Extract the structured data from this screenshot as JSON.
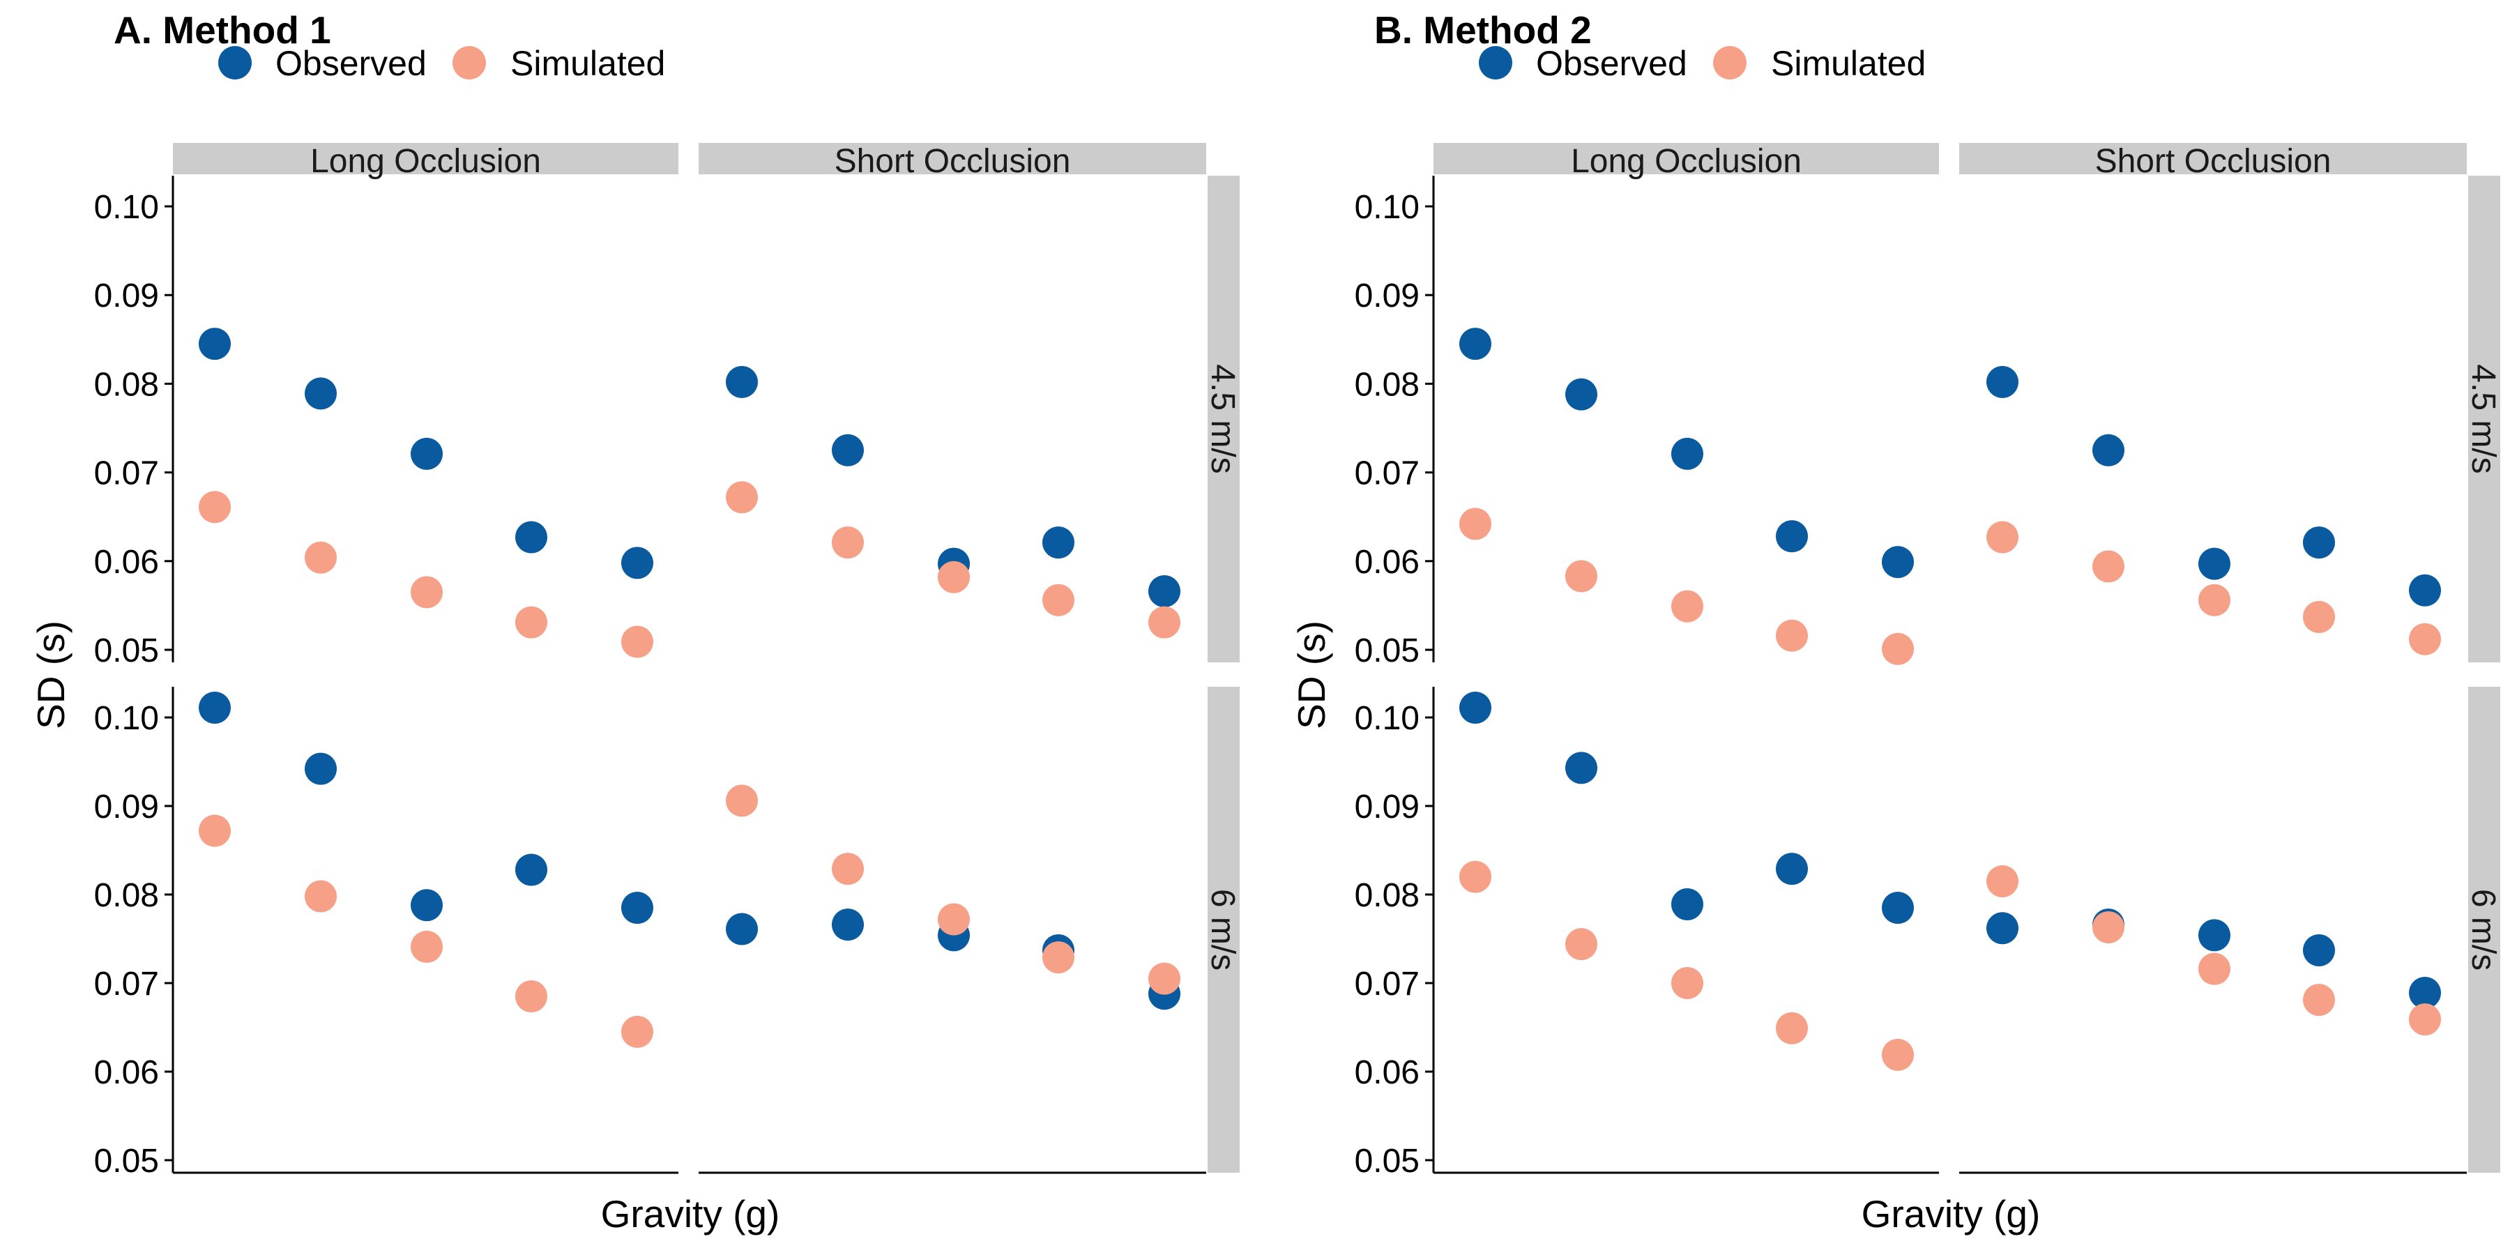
{
  "colors": {
    "observed": "#0a5aa0",
    "simulated": "#f7a088",
    "strip": "#cccccc"
  },
  "legend": {
    "observed": "Observed",
    "simulated": "Simulated"
  },
  "chart_data": [
    {
      "type": "scatter",
      "title": "A. Method 1",
      "xlabel": "Gravity (g)",
      "ylabel": "SD (s)",
      "ylim": [
        0.05,
        0.1
      ],
      "yticks": [
        "0.05",
        "0.06",
        "0.07",
        "0.08",
        "0.09",
        "0.10"
      ],
      "columns": [
        "Long Occlusion",
        "Short Occlusion"
      ],
      "rows": [
        "4.5 m/s",
        "6 m/s"
      ],
      "legend_placement": "top",
      "grid": false,
      "panels": [
        {
          "col": 0,
          "row": 0,
          "series": [
            {
              "name": "Observed",
              "values": [
                0.0845,
                0.0789,
                0.0721,
                0.0627,
                0.0598
              ]
            },
            {
              "name": "Simulated",
              "values": [
                0.0661,
                0.0604,
                0.0565,
                0.0531,
                0.0509
              ]
            }
          ]
        },
        {
          "col": 1,
          "row": 0,
          "series": [
            {
              "name": "Observed",
              "values": [
                0.0802,
                0.0725,
                0.0597,
                0.0621,
                0.0566
              ]
            },
            {
              "name": "Simulated",
              "values": [
                0.0672,
                0.0621,
                0.0582,
                0.0556,
                0.0531
              ]
            }
          ]
        },
        {
          "col": 0,
          "row": 1,
          "series": [
            {
              "name": "Observed",
              "values": [
                0.1011,
                0.0942,
                0.0788,
                0.0828,
                0.0785
              ]
            },
            {
              "name": "Simulated",
              "values": [
                0.0872,
                0.0798,
                0.0741,
                0.0685,
                0.0645
              ]
            }
          ]
        },
        {
          "col": 1,
          "row": 1,
          "series": [
            {
              "name": "Observed",
              "values": [
                0.0761,
                0.0766,
                0.0754,
                0.0737,
                0.0688
              ]
            },
            {
              "name": "Simulated",
              "values": [
                0.0906,
                0.0829,
                0.0772,
                0.0729,
                0.0705
              ]
            }
          ]
        }
      ]
    },
    {
      "type": "scatter",
      "title": "B. Method 2",
      "xlabel": "Gravity (g)",
      "ylabel": "SD (s)",
      "ylim": [
        0.05,
        0.1
      ],
      "yticks": [
        "0.05",
        "0.06",
        "0.07",
        "0.08",
        "0.09",
        "0.10"
      ],
      "columns": [
        "Long Occlusion",
        "Short Occlusion"
      ],
      "rows": [
        "4.5 m/s",
        "6 m/s"
      ],
      "legend_placement": "top",
      "grid": false,
      "panels": [
        {
          "col": 0,
          "row": 0,
          "series": [
            {
              "name": "Observed",
              "values": [
                0.0845,
                0.0788,
                0.0721,
                0.0628,
                0.0599
              ]
            },
            {
              "name": "Simulated",
              "values": [
                0.0642,
                0.0583,
                0.0549,
                0.0516,
                0.0501
              ]
            }
          ]
        },
        {
          "col": 1,
          "row": 0,
          "series": [
            {
              "name": "Observed",
              "values": [
                0.0802,
                0.0725,
                0.0597,
                0.0621,
                0.0567
              ]
            },
            {
              "name": "Simulated",
              "values": [
                0.0627,
                0.0594,
                0.0556,
                0.0537,
                0.0512
              ]
            }
          ]
        },
        {
          "col": 0,
          "row": 1,
          "series": [
            {
              "name": "Observed",
              "values": [
                0.1011,
                0.0943,
                0.0789,
                0.0829,
                0.0785
              ]
            },
            {
              "name": "Simulated",
              "values": [
                0.082,
                0.0744,
                0.07,
                0.0649,
                0.0619
              ]
            }
          ]
        },
        {
          "col": 1,
          "row": 1,
          "series": [
            {
              "name": "Observed",
              "values": [
                0.0762,
                0.0766,
                0.0754,
                0.0737,
                0.0689
              ]
            },
            {
              "name": "Simulated",
              "values": [
                0.0815,
                0.0763,
                0.0716,
                0.0681,
                0.0659
              ]
            }
          ]
        }
      ]
    }
  ]
}
